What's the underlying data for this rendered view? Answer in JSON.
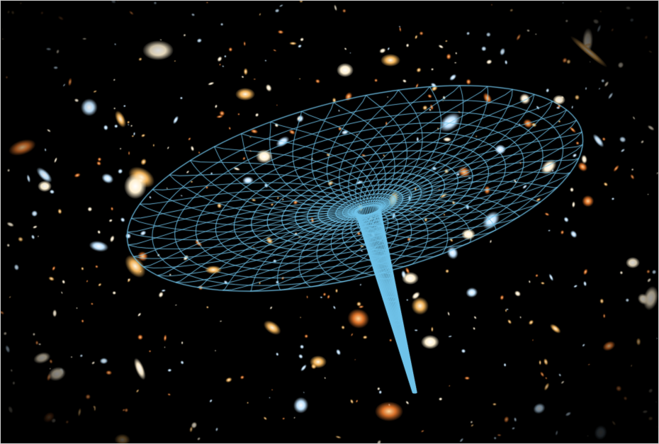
{
  "scene": {
    "subject": "deep-field-galaxies-with-spacetime-funnel",
    "colors": {
      "background": "#000000",
      "grid_line": "#6fc3ea",
      "galaxy_warm": "#f2b45a",
      "galaxy_white": "#fff6e4",
      "galaxy_orange": "#e0742a",
      "galaxy_blue": "#bfe3ff"
    }
  }
}
